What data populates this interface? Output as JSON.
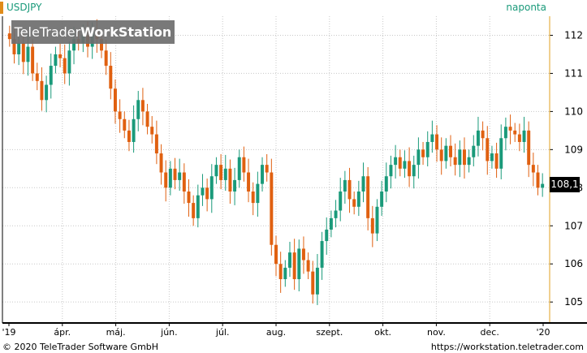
{
  "header": {
    "symbol": "USDJPY",
    "period": "naponta",
    "watermark_brand": "TeleTrader",
    "watermark_product": "WorkStation"
  },
  "footer": {
    "copyright": "© 2020 TeleTrader Software GmbH",
    "url": "https://workstation.teletrader.com"
  },
  "colors": {
    "up": "#1a9a7a",
    "down": "#e06010",
    "axis": "#e0a020",
    "grid": "#c8c8c8"
  },
  "chart_data": {
    "type": "candlestick",
    "title": "USDJPY",
    "ylim": [
      104.45,
      112.5
    ],
    "y_ticks": [
      105,
      106,
      107,
      108,
      109,
      110,
      111,
      112
    ],
    "x_ticks": [
      "'19",
      "ápr.",
      "máj.",
      "jún.",
      "júl.",
      "aug.",
      "szept.",
      "okt.",
      "nov.",
      "dec.",
      "'20"
    ],
    "last_value_label": "108,1",
    "last_value": 108.1,
    "series": [
      {
        "close": [
          111.9,
          111.5,
          111.8,
          111.3,
          111.7,
          111.0,
          110.8,
          110.3,
          110.7,
          111.2,
          111.5,
          111.4,
          111.0,
          111.6,
          111.9,
          111.8,
          112.0,
          111.7,
          112.1,
          111.9,
          111.6,
          111.2,
          110.6,
          110.0,
          109.8,
          109.5,
          109.2,
          109.8,
          110.3,
          110.0,
          109.6,
          109.4,
          108.9,
          108.4,
          108.0,
          108.5,
          108.2,
          108.4,
          107.9,
          107.6,
          107.2,
          107.8,
          108.0,
          107.7,
          108.3,
          108.6,
          108.2,
          108.5,
          107.9,
          108.2,
          108.8,
          108.4,
          107.9,
          107.6,
          108.1,
          108.6,
          108.4,
          106.5,
          106.0,
          105.6,
          105.9,
          106.3,
          105.6,
          106.4,
          106.1,
          105.8,
          105.2,
          105.9,
          106.6,
          106.9,
          107.2,
          107.4,
          107.9,
          108.2,
          107.7,
          107.5,
          107.9,
          108.3,
          107.2,
          106.8,
          107.5,
          107.9,
          108.3,
          108.6,
          108.8,
          108.5,
          108.7,
          108.3,
          108.6,
          109.0,
          108.8,
          109.2,
          109.4,
          109.0,
          108.7,
          109.1,
          108.8,
          108.6,
          109.0,
          108.6,
          108.8,
          109.1,
          109.5,
          109.3,
          108.7,
          108.9,
          108.5,
          109.3,
          109.6,
          109.5,
          109.4,
          109.2,
          109.5,
          108.6,
          108.4,
          108.0,
          108.1
        ]
      }
    ]
  }
}
